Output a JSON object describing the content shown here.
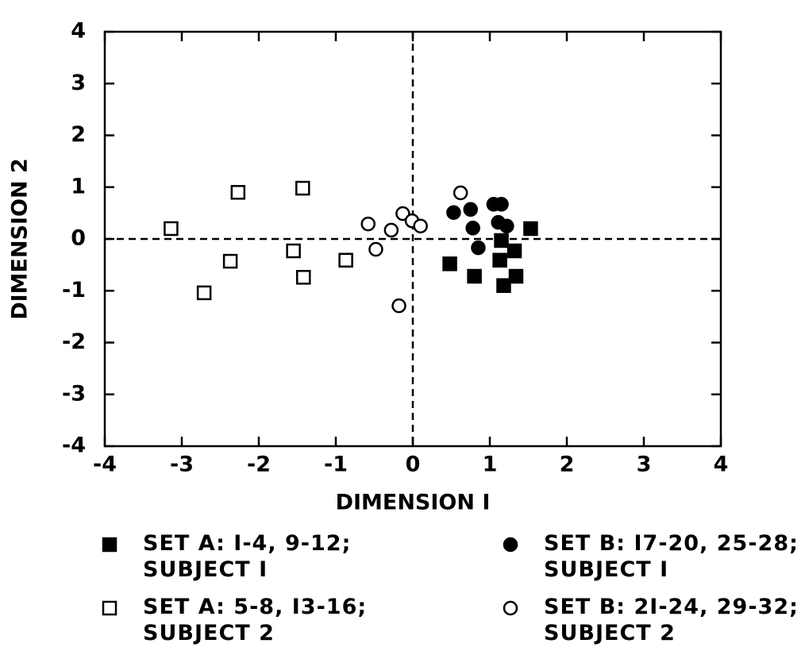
{
  "chart_data": {
    "type": "scatter",
    "xlabel": "DIMENSION I",
    "ylabel": "DIMENSION 2",
    "xlim": [
      -4,
      4
    ],
    "ylim": [
      -4,
      4
    ],
    "xticks": [
      -4,
      -3,
      -2,
      -1,
      0,
      1,
      2,
      3,
      4
    ],
    "yticks": [
      -4,
      -3,
      -2,
      -1,
      0,
      1,
      2,
      3,
      4
    ],
    "series": [
      {
        "name": "SET A: I-4, 9-12;\nSUBJECT I",
        "color": "#000000",
        "marker": "square",
        "filled": true,
        "x": [
          0.48,
          0.8,
          1.13,
          1.18,
          1.32,
          1.34,
          1.53,
          1.15
        ],
        "values": [
          -0.48,
          -0.72,
          -0.41,
          -0.9,
          -0.23,
          -0.72,
          0.2,
          -0.03
        ]
      },
      {
        "name": "SET B: I7-20, 25-28;\nSUBJECT  I",
        "color": "#000000",
        "marker": "circle",
        "filled": true,
        "x": [
          0.53,
          0.75,
          0.78,
          0.85,
          1.05,
          1.15,
          1.11,
          1.22
        ],
        "values": [
          0.51,
          0.57,
          0.21,
          -0.17,
          0.67,
          0.67,
          0.32,
          0.25
        ]
      },
      {
        "name": "SET A: 5-8, I3-16;\nSUBJECT 2",
        "color": "#000000",
        "marker": "square",
        "filled": false,
        "x": [
          -3.14,
          -2.27,
          -1.43,
          -2.37,
          -1.55,
          -1.42,
          -0.87,
          -2.71
        ],
        "values": [
          0.2,
          0.9,
          0.98,
          -0.43,
          -0.23,
          -0.74,
          -0.41,
          -1.04
        ]
      },
      {
        "name": "SET B: 2I-24, 29-32;\nSUBJECT  2",
        "color": "#000000",
        "marker": "circle",
        "filled": false,
        "x": [
          0.62,
          -0.58,
          -0.48,
          -0.28,
          -0.13,
          -0.01,
          0.1,
          -0.18
        ],
        "values": [
          0.89,
          0.29,
          -0.2,
          0.17,
          0.49,
          0.35,
          0.25,
          -1.29
        ]
      }
    ]
  }
}
